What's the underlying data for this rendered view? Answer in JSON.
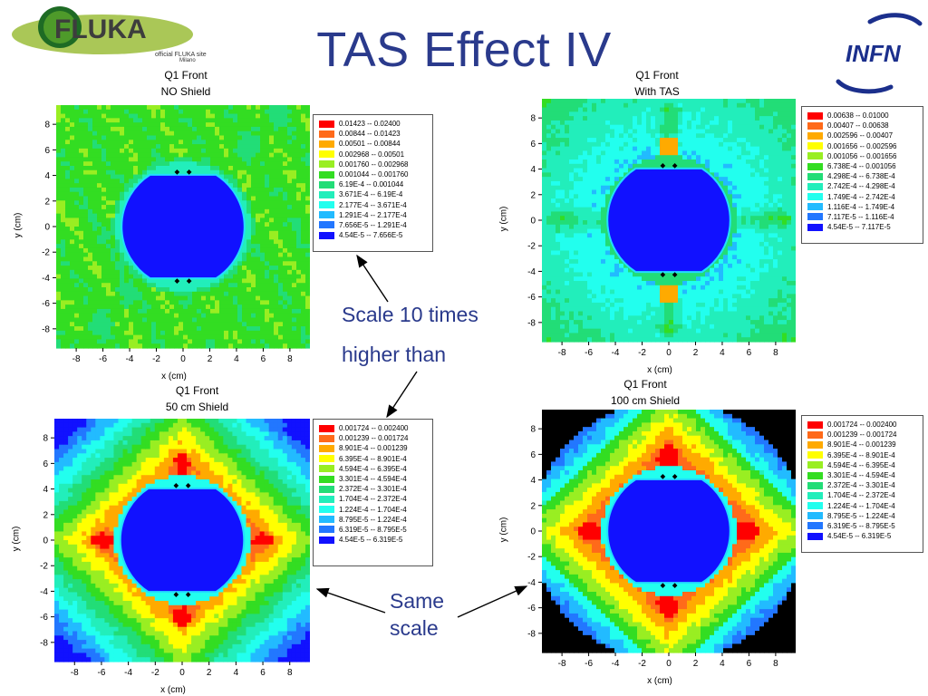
{
  "slide": {
    "title": "TAS Effect IV",
    "fluka_logo": {
      "name": "FLUKA",
      "tagline": "official FLUKA site",
      "place": "Milano"
    },
    "infn_logo": {
      "name": "INFN"
    }
  },
  "annotations": {
    "top_note_line1": "Scale 10 times",
    "top_note_line2": "higher than",
    "bottom_note_line1": "Same",
    "bottom_note_line2": "scale"
  },
  "chart_data": [
    {
      "type": "heatmap",
      "title_line1": "Q1 Front",
      "title_line2": "NO Shield",
      "xlabel": "x (cm)",
      "ylabel": "y (cm)",
      "xticks": [
        "-8",
        "-6",
        "-4",
        "-2",
        "0",
        "2",
        "4",
        "6",
        "8"
      ],
      "yticks": [
        "8",
        "6",
        "4",
        "2",
        "0",
        "-2",
        "-4",
        "-6",
        "-8"
      ],
      "levels": [
        {
          "label": "0.01423  --  0.02400",
          "color": "#ff0000"
        },
        {
          "label": "0.00844  --  0.01423",
          "color": "#ff6a1a"
        },
        {
          "label": "0.00501  --  0.00844",
          "color": "#ffaa00"
        },
        {
          "label": "0.002968  --  0.00501",
          "color": "#ffff00"
        },
        {
          "label": "0.001760  --  0.002968",
          "color": "#99ee22"
        },
        {
          "label": "0.001044  --  0.001760",
          "color": "#33dd22"
        },
        {
          "label": "6.19E-4  --  0.001044",
          "color": "#22dd77"
        },
        {
          "label": "3.671E-4  --  6.19E-4",
          "color": "#22eebb"
        },
        {
          "label": "2.177E-4  --  3.671E-4",
          "color": "#22ffee"
        },
        {
          "label": "1.291E-4  --  2.177E-4",
          "color": "#22bbff"
        },
        {
          "label": "7.656E-5  --  1.291E-4",
          "color": "#2277ff"
        },
        {
          "label": "4.54E-5  --  7.656E-5",
          "color": "#1111ff"
        }
      ]
    },
    {
      "type": "heatmap",
      "title_line1": "Q1 Front",
      "title_line2": "With TAS",
      "xlabel": "x (cm)",
      "ylabel": "y (cm)",
      "xticks": [
        "-8",
        "-6",
        "-4",
        "-2",
        "0",
        "2",
        "4",
        "6",
        "8"
      ],
      "yticks": [
        "8",
        "6",
        "4",
        "2",
        "0",
        "-2",
        "-4",
        "-6",
        "-8"
      ],
      "levels": [
        {
          "label": "0.00638  --  0.01000",
          "color": "#ff0000"
        },
        {
          "label": "0.00407  --  0.00638",
          "color": "#ff6a1a"
        },
        {
          "label": "0.002596  --  0.00407",
          "color": "#ffaa00"
        },
        {
          "label": "0.001656  --  0.002596",
          "color": "#ffff00"
        },
        {
          "label": "0.001056  --  0.001656",
          "color": "#99ee22"
        },
        {
          "label": "6.738E-4  --  0.001056",
          "color": "#33dd22"
        },
        {
          "label": "4.298E-4  --  6.738E-4",
          "color": "#22dd77"
        },
        {
          "label": "2.742E-4  --  4.298E-4",
          "color": "#22eebb"
        },
        {
          "label": "1.749E-4  --  2.742E-4",
          "color": "#22ffee"
        },
        {
          "label": "1.116E-4  --  1.749E-4",
          "color": "#22bbff"
        },
        {
          "label": "7.117E-5  --  1.116E-4",
          "color": "#2277ff"
        },
        {
          "label": "4.54E-5  --  7.117E-5",
          "color": "#1111ff"
        }
      ]
    },
    {
      "type": "heatmap",
      "title_line1": "Q1 Front",
      "title_line2": "50 cm Shield",
      "xlabel": "x (cm)",
      "ylabel": "y (cm)",
      "xticks": [
        "-8",
        "-6",
        "-4",
        "-2",
        "0",
        "2",
        "4",
        "6",
        "8"
      ],
      "yticks": [
        "8",
        "6",
        "4",
        "2",
        "0",
        "-2",
        "-4",
        "-6",
        "-8"
      ],
      "levels": [
        {
          "label": "0.001724  --  0.002400",
          "color": "#ff0000"
        },
        {
          "label": "0.001239  --  0.001724",
          "color": "#ff6a1a"
        },
        {
          "label": "8.901E-4  --  0.001239",
          "color": "#ffaa00"
        },
        {
          "label": "6.395E-4  --  8.901E-4",
          "color": "#ffff00"
        },
        {
          "label": "4.594E-4  --  6.395E-4",
          "color": "#99ee22"
        },
        {
          "label": "3.301E-4  --  4.594E-4",
          "color": "#33dd22"
        },
        {
          "label": "2.372E-4  --  3.301E-4",
          "color": "#22dd77"
        },
        {
          "label": "1.704E-4  --  2.372E-4",
          "color": "#22eebb"
        },
        {
          "label": "1.224E-4  --  1.704E-4",
          "color": "#22ffee"
        },
        {
          "label": "8.795E-5  --  1.224E-4",
          "color": "#22bbff"
        },
        {
          "label": "6.319E-5  --  8.795E-5",
          "color": "#2277ff"
        },
        {
          "label": "4.54E-5  --  6.319E-5",
          "color": "#1111ff"
        }
      ]
    },
    {
      "type": "heatmap",
      "title_line1": "Q1 Front",
      "title_line2": "100 cm Shield",
      "xlabel": "x (cm)",
      "ylabel": "y (cm)",
      "xticks": [
        "-8",
        "-6",
        "-4",
        "-2",
        "0",
        "2",
        "4",
        "6",
        "8"
      ],
      "yticks": [
        "8",
        "6",
        "4",
        "2",
        "0",
        "-2",
        "-4",
        "-6",
        "-8"
      ],
      "levels": [
        {
          "label": "0.001724  --  0.002400",
          "color": "#ff0000"
        },
        {
          "label": "0.001239  --  0.001724",
          "color": "#ff6a1a"
        },
        {
          "label": "8.901E-4  --  0.001239",
          "color": "#ffaa00"
        },
        {
          "label": "6.395E-4  --  8.901E-4",
          "color": "#ffff00"
        },
        {
          "label": "4.594E-4  --  6.395E-4",
          "color": "#99ee22"
        },
        {
          "label": "3.301E-4  --  4.594E-4",
          "color": "#33dd22"
        },
        {
          "label": "2.372E-4  --  3.301E-4",
          "color": "#22dd77"
        },
        {
          "label": "1.704E-4  --  2.372E-4",
          "color": "#22eebb"
        },
        {
          "label": "1.224E-4  --  1.704E-4",
          "color": "#22ffee"
        },
        {
          "label": "8.795E-5  --  1.224E-4",
          "color": "#22bbff"
        },
        {
          "label": "6.319E-5  --  8.795E-5",
          "color": "#2277ff"
        },
        {
          "label": "4.54E-5  --  6.319E-5",
          "color": "#1111ff"
        }
      ]
    }
  ]
}
